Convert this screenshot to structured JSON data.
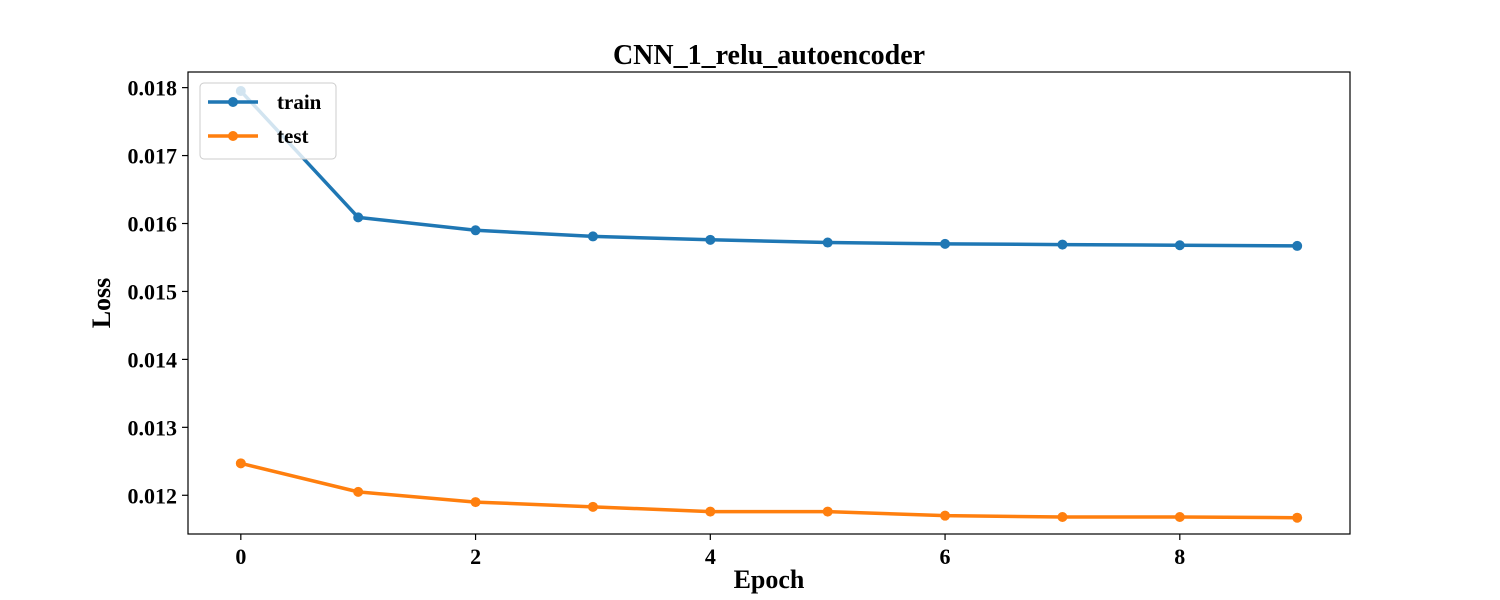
{
  "chart_data": {
    "type": "line",
    "title": "CNN_1_relu_autoencoder",
    "xlabel": "Epoch",
    "ylabel": "Loss",
    "xlim": [
      -0.45,
      9.45
    ],
    "ylim": [
      0.01143,
      0.01823
    ],
    "x_ticks": [
      0,
      2,
      4,
      6,
      8
    ],
    "y_ticks": [
      0.012,
      0.013,
      0.014,
      0.015,
      0.016,
      0.017,
      0.018
    ],
    "x_tick_labels": [
      "0",
      "2",
      "4",
      "6",
      "8"
    ],
    "y_tick_labels": [
      "0.012",
      "0.013",
      "0.014",
      "0.015",
      "0.016",
      "0.017",
      "0.018"
    ],
    "x": [
      0,
      1,
      2,
      3,
      4,
      5,
      6,
      7,
      8,
      9
    ],
    "grid": false,
    "legend_position": "top-left",
    "series": [
      {
        "name": "train",
        "color": "#1f77b4",
        "values": [
          0.01795,
          0.01609,
          0.0159,
          0.01581,
          0.01576,
          0.01572,
          0.0157,
          0.01569,
          0.01568,
          0.01567
        ]
      },
      {
        "name": "test",
        "color": "#ff7f0e",
        "values": [
          0.01247,
          0.01205,
          0.0119,
          0.01183,
          0.01176,
          0.01176,
          0.0117,
          0.01168,
          0.01168,
          0.01167
        ]
      }
    ]
  }
}
